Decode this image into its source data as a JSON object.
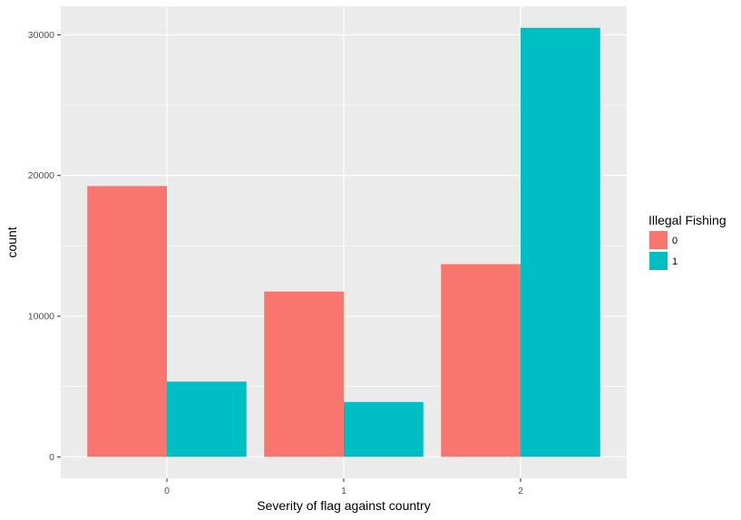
{
  "chart_data": {
    "type": "bar",
    "categories": [
      "0",
      "1",
      "2"
    ],
    "series": [
      {
        "name": "0",
        "values": [
          19250,
          11750,
          13700
        ],
        "color": "#F8766D"
      },
      {
        "name": "1",
        "values": [
          5350,
          3900,
          30500
        ],
        "color": "#00BFC4"
      }
    ],
    "xlabel": "Severity of flag against country",
    "ylabel": "count",
    "ylim": [
      -1525,
      32025
    ],
    "yticks": [
      0,
      10000,
      20000,
      30000
    ],
    "ytick_labels": [
      "0",
      "10000",
      "20000",
      "30000"
    ],
    "legend": {
      "title": "Illegal Fishing",
      "position": "right"
    },
    "grid": true,
    "panel_background": "#EBEBEB",
    "grid_color": "#FFFFFF"
  }
}
